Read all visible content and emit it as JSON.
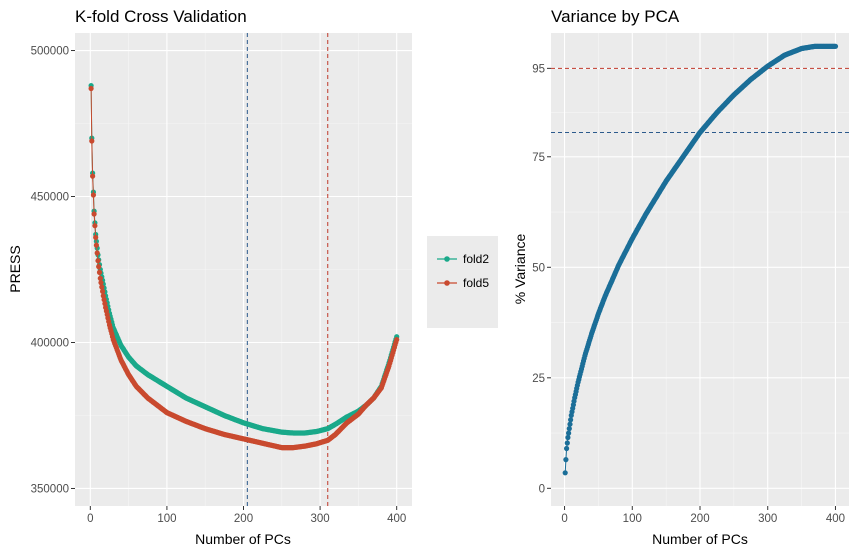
{
  "chart_data": [
    {
      "type": "line",
      "title": "K-fold Cross Validation",
      "xlabel": "Number of PCs",
      "ylabel": "PRESS",
      "xlim": [
        -20,
        420
      ],
      "ylim": [
        344000,
        506000
      ],
      "xticks": [
        0,
        100,
        200,
        300,
        400
      ],
      "yticks": [
        350000,
        400000,
        450000,
        500000
      ],
      "xtick_labels": [
        "0",
        "100",
        "200",
        "300",
        "400"
      ],
      "ytick_labels": [
        "350000",
        "400000",
        "450000",
        "500000"
      ],
      "grid": true,
      "legend": "right",
      "vlines": [
        {
          "x": 205,
          "color": "#2c5a8c",
          "style": "dashed"
        },
        {
          "x": 310,
          "color": "#c0392b",
          "style": "dashed"
        }
      ],
      "series": [
        {
          "name": "fold2",
          "color": "#1aa98a",
          "x": [
            1,
            2,
            3,
            5,
            7,
            10,
            13,
            17,
            20,
            25,
            30,
            40,
            50,
            60,
            75,
            100,
            125,
            150,
            175,
            200,
            225,
            250,
            265,
            280,
            295,
            310,
            320,
            335,
            350,
            360,
            370,
            380,
            390,
            400
          ],
          "y": [
            488000,
            470000,
            458000,
            445000,
            437000,
            430000,
            425000,
            420000,
            416000,
            410000,
            405000,
            399000,
            395000,
            392000,
            389000,
            385000,
            381000,
            378000,
            375000,
            372500,
            370500,
            369300,
            369000,
            369000,
            369500,
            370500,
            372000,
            374500,
            376500,
            378500,
            381000,
            385000,
            393000,
            402000
          ]
        },
        {
          "name": "fold5",
          "color": "#c94a2f",
          "x": [
            1,
            2,
            3,
            5,
            7,
            10,
            13,
            17,
            20,
            25,
            30,
            40,
            50,
            60,
            75,
            100,
            125,
            150,
            175,
            200,
            225,
            250,
            265,
            280,
            295,
            310,
            320,
            335,
            350,
            360,
            370,
            380,
            390,
            400
          ],
          "y": [
            487000,
            469000,
            457000,
            444000,
            436000,
            428000,
            422000,
            416000,
            412000,
            406000,
            401000,
            394000,
            389000,
            385000,
            381000,
            376000,
            373000,
            370500,
            368500,
            367000,
            365500,
            364000,
            364000,
            364500,
            365300,
            366500,
            368500,
            372500,
            375500,
            378500,
            381000,
            384500,
            392000,
            401000
          ]
        }
      ]
    },
    {
      "type": "scatter",
      "title": "Variance by PCA",
      "xlabel": "Number of PCs",
      "ylabel": "% Variance",
      "xlim": [
        -20,
        420
      ],
      "ylim": [
        -4,
        103
      ],
      "xticks": [
        0,
        100,
        200,
        300,
        400
      ],
      "yticks": [
        0,
        25,
        50,
        75,
        95
      ],
      "xtick_labels": [
        "0",
        "100",
        "200",
        "300",
        "400"
      ],
      "ytick_labels": [
        "0",
        "25",
        "50",
        "75",
        "95"
      ],
      "grid": true,
      "hlines": [
        {
          "y": 95,
          "color": "#c0392b",
          "style": "dashed"
        },
        {
          "y": 80.5,
          "color": "#2c5a8c",
          "style": "dashed"
        }
      ],
      "series": [
        {
          "color": "#1b6e98",
          "x": [
            1,
            2,
            3,
            5,
            7,
            10,
            15,
            20,
            30,
            40,
            50,
            60,
            70,
            80,
            100,
            120,
            150,
            175,
            200,
            225,
            250,
            275,
            300,
            325,
            350,
            370,
            390,
            400
          ],
          "y": [
            3.5,
            6.5,
            9,
            11.5,
            13.5,
            16.5,
            20.5,
            24,
            30,
            35,
            39.5,
            43.5,
            47,
            50.5,
            56.5,
            62,
            69.5,
            75,
            80.5,
            85,
            89,
            92.5,
            95.5,
            98,
            99.5,
            100,
            100,
            100
          ]
        }
      ]
    }
  ]
}
